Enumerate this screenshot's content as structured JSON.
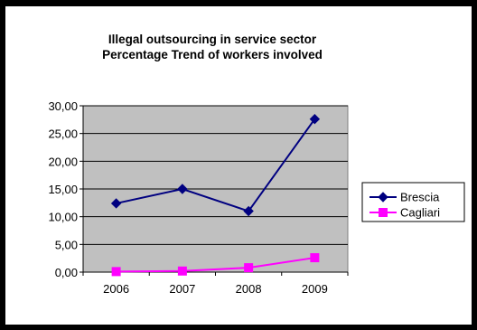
{
  "chart_data": {
    "type": "line",
    "title_lines": [
      "Illegal outsourcing in service sector",
      "Percentage Trend of workers involved"
    ],
    "categories": [
      "2006",
      "2007",
      "2008",
      "2009"
    ],
    "y_ticks": [
      "0,00",
      "5,00",
      "10,00",
      "15,00",
      "20,00",
      "25,00",
      "30,00"
    ],
    "ylim": [
      0,
      30
    ],
    "grid": true,
    "legend_position": "right",
    "plot_background": "#c0c0c0",
    "series": [
      {
        "name": "Brescia",
        "values": [
          12.4,
          15.0,
          11.0,
          27.6
        ],
        "color": "#000080",
        "marker": "diamond"
      },
      {
        "name": "Cagliari",
        "values": [
          0.1,
          0.2,
          0.8,
          2.6
        ],
        "color": "#ff00ff",
        "marker": "square"
      }
    ]
  }
}
